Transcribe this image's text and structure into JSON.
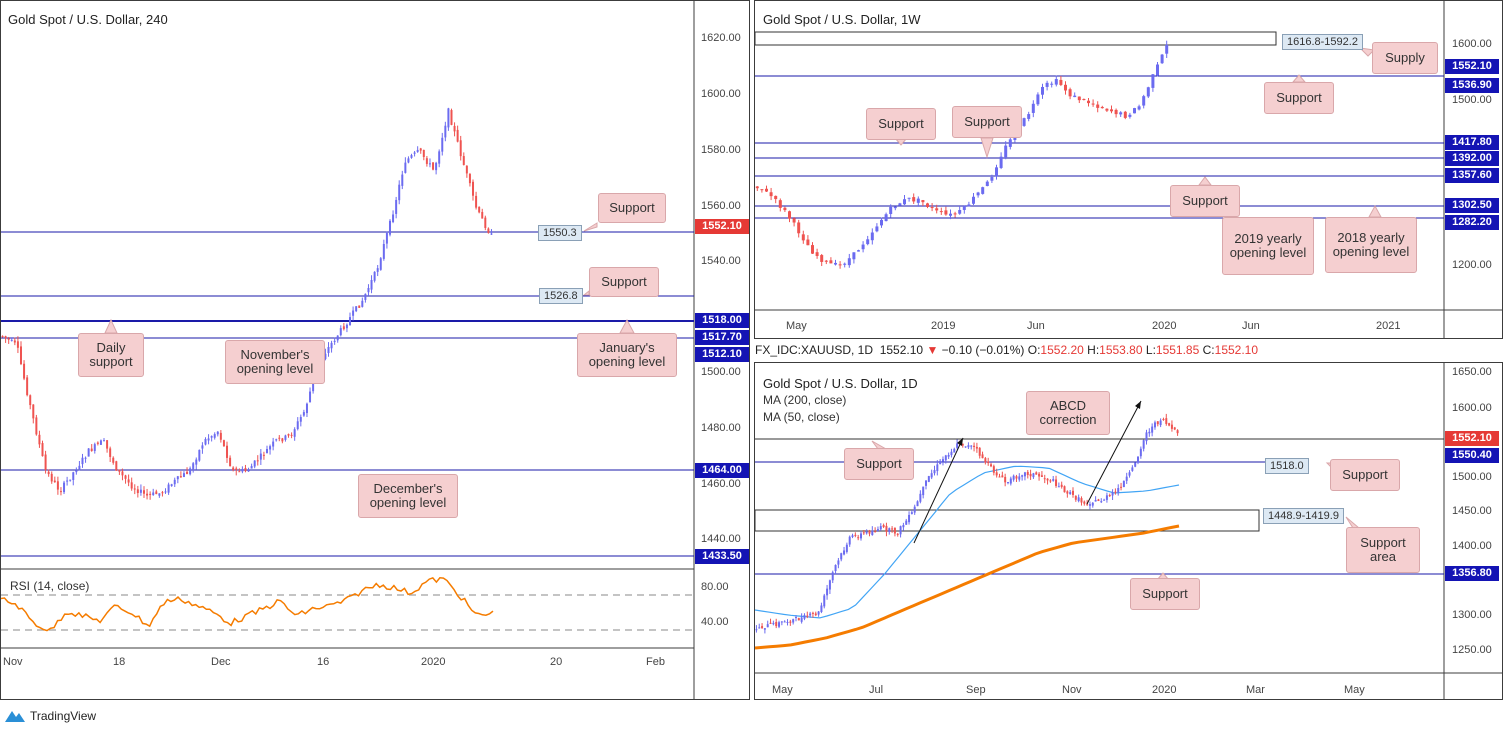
{
  "branding": {
    "name": "TradingView",
    "icon": "tradingview-logo-icon"
  },
  "colors": {
    "up": "#6b6bf0",
    "down": "#ef5350",
    "price_red": "#e53935",
    "level_blue": "#1a1aa8",
    "label_blue": "#1414b4",
    "ma200": "#f57c00",
    "ma50": "#42a5f5",
    "rsi": "#f57c00",
    "callout_bg": "#f5cfd0"
  },
  "chart_h4": {
    "title": "Gold Spot / U.S. Dollar, 240",
    "price_axis": [
      "1620.00",
      "1600.00",
      "1580.00",
      "1560.00",
      "1540.00",
      "1500.00",
      "1480.00",
      "1460.00",
      "1440.00"
    ],
    "time_axis": [
      "Nov",
      "18",
      "Dec",
      "16",
      "2020",
      "20",
      "Feb"
    ],
    "last_price": "1552.10",
    "level_labels": [
      "1518.00",
      "1517.70",
      "1512.10",
      "1464.00",
      "1433.50"
    ],
    "marked_levels": [
      "1550.3",
      "1526.8"
    ],
    "callouts": {
      "support_1": "Support",
      "support_2": "Support",
      "daily_support": "Daily support",
      "november": "November's opening level",
      "january": "January's opening level",
      "december": "December's opening level"
    },
    "rsi": {
      "title": "RSI (14, close)",
      "axis": [
        "80.00",
        "40.00"
      ]
    }
  },
  "chart_w1": {
    "title": "Gold Spot / U.S. Dollar, 1W",
    "price_axis": [
      "1600.00",
      "1500.00",
      "1200.00"
    ],
    "time_axis": [
      "May",
      "2019",
      "Jun",
      "2020",
      "Jun",
      "2021"
    ],
    "level_labels": [
      "1552.10",
      "1536.90",
      "1417.80",
      "1392.00",
      "1357.60",
      "1302.50",
      "1282.20"
    ],
    "supply_zone": "1616.8-1592.2",
    "callouts": {
      "supply": "Supply",
      "support_main": "Support",
      "support_a": "Support",
      "support_b": "Support",
      "support_c": "Support",
      "yearly_2019": "2019 yearly opening level",
      "yearly_2018": "2018 yearly opening level"
    }
  },
  "chart_d1": {
    "info_symbol": "FX_IDC:XAUUSD, 1D",
    "info_price": "1552.10",
    "info_change": "−0.10 (−0.01%)",
    "info_ohlc": {
      "o_label": "O:",
      "o": "1552.20",
      "h_label": "H:",
      "h": "1553.80",
      "l_label": "L:",
      "l": "1551.85",
      "c_label": "C:",
      "c": "1552.10"
    },
    "title": "Gold Spot / U.S. Dollar, 1D",
    "ma200": "MA (200, close)",
    "ma50": "MA (50, close)",
    "price_axis": [
      "1650.00",
      "1600.00",
      "1500.00",
      "1450.00",
      "1400.00",
      "1300.00",
      "1250.00"
    ],
    "time_axis": [
      "May",
      "Jul",
      "Sep",
      "Nov",
      "2020",
      "Mar",
      "May"
    ],
    "level_labels": [
      "1552.10",
      "1550.40",
      "1356.80"
    ],
    "marked_levels": [
      "1518.0",
      "1448.9-1419.9"
    ],
    "callouts": {
      "abcd": "ABCD correction",
      "support_left": "Support",
      "support_right": "Support",
      "support_area": "Support area",
      "support_bottom": "Support"
    }
  }
}
